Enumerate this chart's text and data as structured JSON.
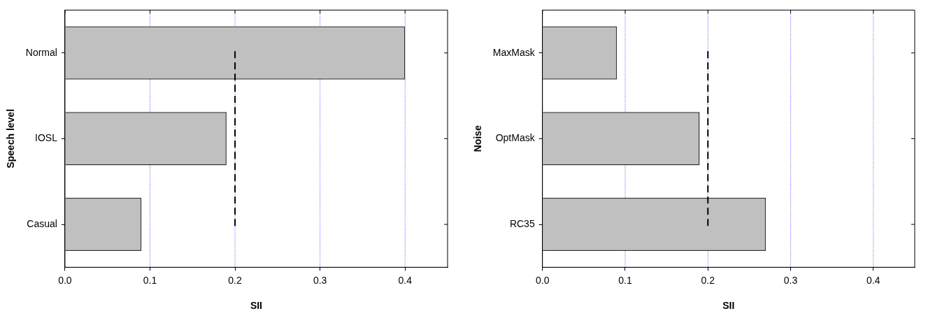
{
  "chart_data": [
    {
      "type": "bar",
      "orientation": "horizontal",
      "categories": [
        "Normal",
        "IOSL",
        "Casual"
      ],
      "values": [
        0.4,
        0.19,
        0.09
      ],
      "color": "#c0c0c0",
      "xlim": [
        0,
        0.45
      ],
      "xticks": [
        {
          "value": 0,
          "label": "0.0"
        },
        0.1,
        0.2,
        0.3,
        0.4
      ],
      "xlabel": "SII",
      "ylabel": "Speech level",
      "grid": "x",
      "ref_lines": [
        {
          "axis": "x",
          "value": 0.2,
          "line_style": "dashed",
          "color": "#000000"
        }
      ]
    },
    {
      "type": "bar",
      "orientation": "horizontal",
      "categories": [
        "MaxMask",
        "OptMask",
        "RC35"
      ],
      "values": [
        0.09,
        0.19,
        0.27
      ],
      "color": "#c0c0c0",
      "xlim": [
        0,
        0.45
      ],
      "xticks": [
        {
          "value": 0,
          "label": "0.0"
        },
        0.1,
        0.2,
        0.3,
        0.4
      ],
      "xlabel": "SII",
      "ylabel": "Noise",
      "grid": "x",
      "ref_lines": [
        {
          "axis": "x",
          "value": 0.2,
          "line_style": "dashed",
          "color": "#000000"
        }
      ]
    }
  ]
}
